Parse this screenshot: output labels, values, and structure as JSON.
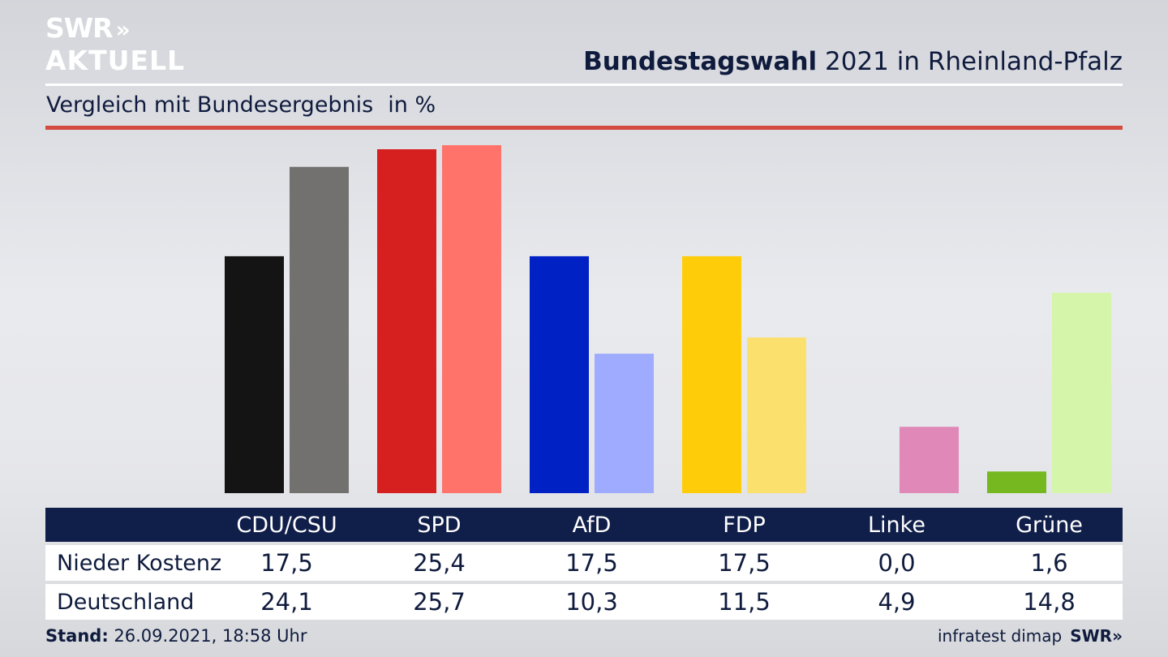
{
  "branding": {
    "logo_line1": "SWR",
    "logo_line2": "AKTUELL",
    "logo_arrows": "»",
    "footer_logo": "SWR»"
  },
  "header": {
    "title_bold": "Bundestagswahl",
    "title_rest": " 2021 in Rheinland-Pfalz"
  },
  "subtitle": {
    "text": "Vergleich mit Bundesergebnis",
    "unit": "in %"
  },
  "colors": {
    "accent_rule": "#d34c3f",
    "table_header": "#101e4a"
  },
  "chart_data": {
    "type": "bar",
    "categories": [
      "CDU/CSU",
      "SPD",
      "AfD",
      "FDP",
      "Linke",
      "Grüne"
    ],
    "series": [
      {
        "name": "Nieder Kostenz",
        "values": [
          17.5,
          25.4,
          17.5,
          17.5,
          0.0,
          1.6
        ],
        "colors": [
          "#141414",
          "#d61f1f",
          "#0021c4",
          "#ffcc0a",
          "#b84d99",
          "#76b820"
        ]
      },
      {
        "name": "Deutschland",
        "values": [
          24.1,
          25.7,
          10.3,
          11.5,
          4.9,
          14.8
        ],
        "colors": [
          "#737170",
          "#ff736b",
          "#9fabff",
          "#fce06e",
          "#e088b8",
          "#d4f5aa"
        ]
      }
    ],
    "ylim": [
      0,
      26
    ],
    "grid": false,
    "legend": "table below chart"
  },
  "table": {
    "rows": [
      {
        "label": "Nieder Kostenz",
        "values": [
          "17,5",
          "25,4",
          "17,5",
          "17,5",
          "0,0",
          "1,6"
        ]
      },
      {
        "label": "Deutschland",
        "values": [
          "24,1",
          "25,7",
          "10,3",
          "11,5",
          "4,9",
          "14,8"
        ]
      }
    ]
  },
  "footer": {
    "stand_label": "Stand:",
    "stand_value": " 26.09.2021, 18:58 Uhr",
    "source": "infratest dimap"
  }
}
